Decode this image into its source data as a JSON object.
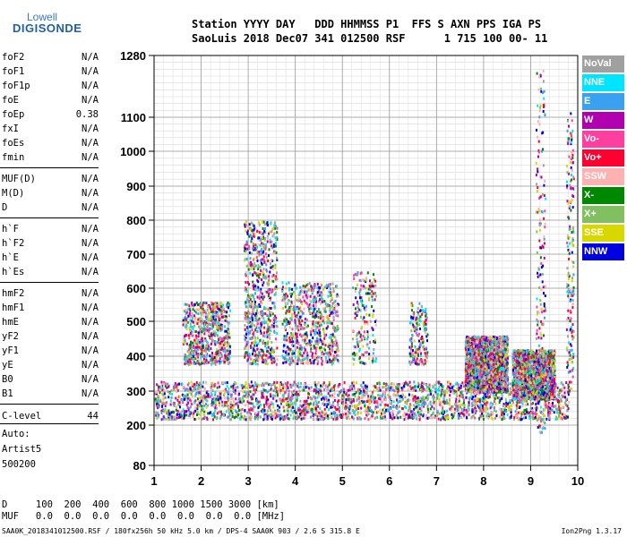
{
  "logo": {
    "line1": "Lowell",
    "line2": "DIGISONDE"
  },
  "header": {
    "line1": "Station YYYY DAY   DDD HHMMSS P1  FFS S AXN PPS IGA PS",
    "line2": "SaoLuis 2018 Dec07 341 012500 RSF      1 715 100 00- 11"
  },
  "params": [
    {
      "name": "foF2",
      "value": "N/A"
    },
    {
      "name": "foF1",
      "value": "N/A"
    },
    {
      "name": "foF1p",
      "value": "N/A"
    },
    {
      "name": "foE",
      "value": "N/A"
    },
    {
      "name": "foEp",
      "value": "0.38"
    },
    {
      "name": "fxI",
      "value": "N/A"
    },
    {
      "name": "foEs",
      "value": "N/A"
    },
    {
      "name": "fmin",
      "value": "N/A"
    },
    {
      "name": "MUF(D)",
      "value": "N/A"
    },
    {
      "name": "M(D)",
      "value": "N/A"
    },
    {
      "name": "D",
      "value": "N/A"
    },
    {
      "name": "h`F",
      "value": "N/A"
    },
    {
      "name": "h`F2",
      "value": "N/A"
    },
    {
      "name": "h`E",
      "value": "N/A"
    },
    {
      "name": "h`Es",
      "value": "N/A"
    },
    {
      "name": "hmF2",
      "value": "N/A"
    },
    {
      "name": "hmF1",
      "value": "N/A"
    },
    {
      "name": "hmE",
      "value": "N/A"
    },
    {
      "name": "yF2",
      "value": "N/A"
    },
    {
      "name": "yF1",
      "value": "N/A"
    },
    {
      "name": "yE",
      "value": "N/A"
    },
    {
      "name": "B0",
      "value": "N/A"
    },
    {
      "name": "B1",
      "value": "N/A"
    },
    {
      "name": "C-level",
      "value": "44"
    }
  ],
  "auto": {
    "line1": "Auto:",
    "line2": "Artist5",
    "line3": "500200"
  },
  "legend": [
    {
      "label": "NoVal",
      "color": "#a0a0a0"
    },
    {
      "label": "NNE",
      "color": "#00e5ff"
    },
    {
      "label": "E",
      "color": "#3aa0f0"
    },
    {
      "label": "W",
      "color": "#b000b0"
    },
    {
      "label": "Vo-",
      "color": "#ff3fa0"
    },
    {
      "label": "Vo+",
      "color": "#ff0030"
    },
    {
      "label": "SSW",
      "color": "#ffb0b0"
    },
    {
      "label": "X-",
      "color": "#008800"
    },
    {
      "label": "X+",
      "color": "#80c060"
    },
    {
      "label": "SSE",
      "color": "#d8d800"
    },
    {
      "label": "NNW",
      "color": "#0000e0"
    }
  ],
  "bottom": {
    "d_line": "D     100  200  400  600  800 1000 1500 3000 [km]",
    "muf_line": "MUF   0.0  0.0  0.0  0.0  0.0  0.0  0.0  0.0 [MHz]"
  },
  "footer": {
    "left": "SAA0K_2018341012500.RSF / 180fx256h 50 kHz 5.0 km / DPS-4 SAA0K 903 / 2.6 S 315.8 E",
    "right": "Ion2Png 1.3.17"
  },
  "chart_data": {
    "type": "scatter",
    "x_ticks": [
      1,
      2,
      3,
      4,
      5,
      6,
      7,
      8,
      9,
      10
    ],
    "y_ticks": [
      80,
      200,
      300,
      400,
      500,
      600,
      700,
      800,
      900,
      1000,
      1100,
      1280
    ],
    "xlim": [
      1,
      10
    ],
    "y_scale": "nonlinear (log-like)",
    "grid": true,
    "legend_position": "right",
    "clusters": [
      {
        "name": "F-trace",
        "x_range": [
          1.0,
          9.8
        ],
        "y_range": [
          220,
          330
        ],
        "density": "high"
      },
      {
        "name": "spread-F",
        "x_range": [
          1.6,
          2.6
        ],
        "y_range": [
          380,
          560
        ],
        "density": "medium"
      },
      {
        "name": "spread-F",
        "x_range": [
          2.9,
          3.6
        ],
        "y_range": [
          380,
          800
        ],
        "density": "medium"
      },
      {
        "name": "spread-F",
        "x_range": [
          3.7,
          4.9
        ],
        "y_range": [
          380,
          620
        ],
        "density": "medium"
      },
      {
        "name": "spread-F",
        "x_range": [
          5.2,
          5.7
        ],
        "y_range": [
          380,
          650
        ],
        "density": "low"
      },
      {
        "name": "spread-F",
        "x_range": [
          6.4,
          6.8
        ],
        "y_range": [
          380,
          560
        ],
        "density": "low"
      },
      {
        "name": "upper-F",
        "x_range": [
          7.6,
          8.5
        ],
        "y_range": [
          300,
          460
        ],
        "density": "high"
      },
      {
        "name": "upper-F",
        "x_range": [
          8.6,
          9.5
        ],
        "y_range": [
          280,
          420
        ],
        "density": "high"
      },
      {
        "name": "vertical",
        "x_range": [
          9.1,
          9.3
        ],
        "y_range": [
          180,
          1250
        ],
        "density": "low"
      },
      {
        "name": "vertical",
        "x_range": [
          9.75,
          9.9
        ],
        "y_range": [
          300,
          1120
        ],
        "density": "low"
      }
    ]
  }
}
